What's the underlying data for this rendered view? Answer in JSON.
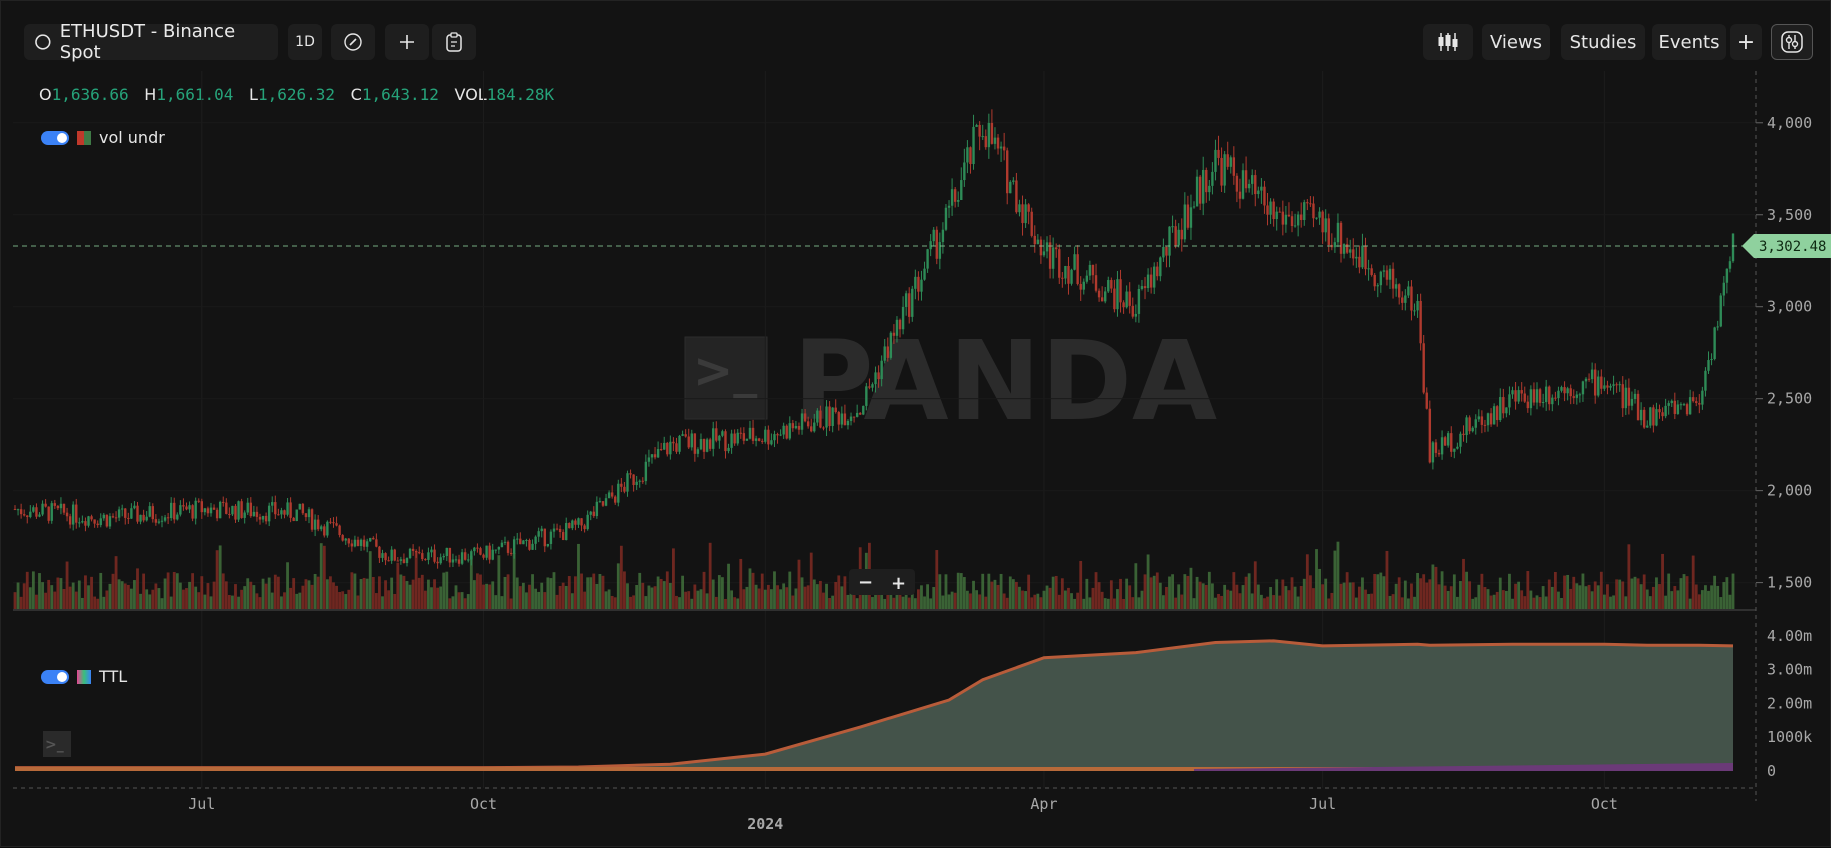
{
  "toolbar": {
    "symbol": "ETHUSDT - Binance Spot",
    "interval": "1D",
    "views_label": "Views",
    "studies_label": "Studies",
    "events_label": "Events",
    "add_label": "+"
  },
  "ohlc": {
    "o_label": "O",
    "o": "1,636.66",
    "h_label": "H",
    "h": "1,661.04",
    "l_label": "L",
    "l": "1,626.32",
    "c_label": "C",
    "c": "1,643.12",
    "vol_label": "VOL",
    "vol": "184.28K"
  },
  "legends": {
    "main_study": "vol undr",
    "lower_study": "TTL"
  },
  "watermark": "PANDA",
  "price_axis": [
    "4,000",
    "3,500",
    "3,000",
    "2,500",
    "2,000",
    "1,500"
  ],
  "lower_axis": [
    "4.00m",
    "3.00m",
    "2.00m",
    "1000k",
    "0"
  ],
  "time_axis": [
    "Jul",
    "Oct",
    "2024",
    "Apr",
    "Jul",
    "Oct"
  ],
  "last_price": "3,302.48",
  "zoom": {
    "minus": "−",
    "plus": "+"
  },
  "colors": {
    "up": "#26a37a",
    "down": "#c0392b",
    "accent": "#3b82f6",
    "price_tag": "#8fd19e"
  },
  "chart_data": {
    "type": "line",
    "title": "",
    "xlabel": "",
    "ylabel": "",
    "ylim": [
      1400,
      4200
    ],
    "x": [
      "2023-05-01",
      "2023-06-01",
      "2023-07-01",
      "2023-08-01",
      "2023-09-01",
      "2023-10-01",
      "2023-11-01",
      "2023-12-01",
      "2024-01-01",
      "2024-02-01",
      "2024-03-01",
      "2024-03-12",
      "2024-04-01",
      "2024-05-01",
      "2024-05-27",
      "2024-06-15",
      "2024-07-01",
      "2024-08-01",
      "2024-08-05",
      "2024-09-01",
      "2024-10-01",
      "2024-10-15",
      "2024-11-01",
      "2024-11-12"
    ],
    "series": [
      {
        "values": [
          1900,
          1850,
          1900,
          1880,
          1640,
          1650,
          1800,
          2250,
          2300,
          2450,
          3500,
          4000,
          3300,
          3000,
          3800,
          3500,
          3450,
          3000,
          2200,
          2500,
          2600,
          2400,
          2500,
          3302
        ]
      }
    ],
    "lower_series": {
      "values_m": [
        0.1,
        0.1,
        0.1,
        0.1,
        0.1,
        0.1,
        0.12,
        0.2,
        0.5,
        1.3,
        2.1,
        2.7,
        3.35,
        3.5,
        3.8,
        3.85,
        3.7,
        3.75,
        3.72,
        3.75,
        3.75,
        3.72,
        3.72,
        3.7
      ],
      "ylim": [
        0,
        4.2
      ]
    }
  }
}
